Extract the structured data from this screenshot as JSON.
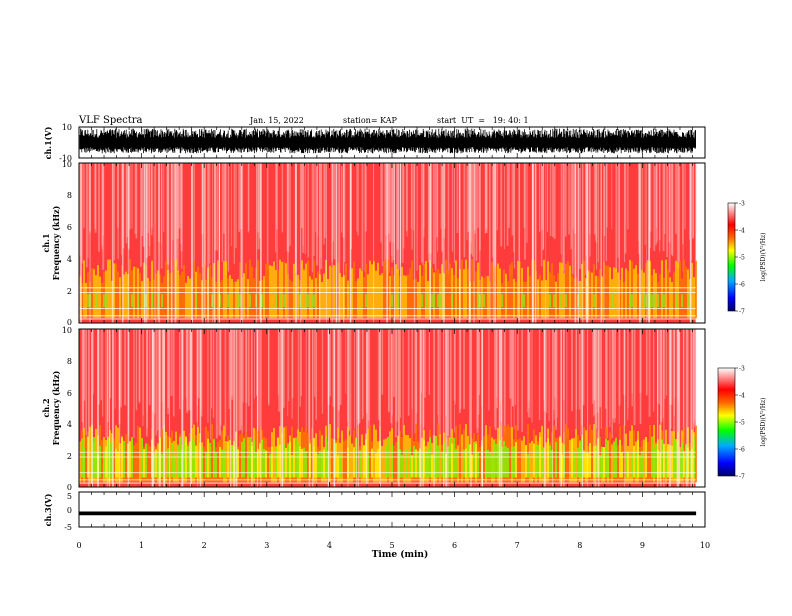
{
  "header": {
    "title": "VLF Spectra",
    "date": "Jan. 15, 2022",
    "station": "station= KAP",
    "start": "start  UT  =   19: 40: 1"
  },
  "chart_data": [
    {
      "type": "line",
      "name": "ch1-waveform",
      "ylabel": "ch.1(V)",
      "ylim": [
        -10,
        10
      ],
      "y_ticks": [
        "10",
        "-10"
      ],
      "xlim": [
        0,
        10
      ],
      "data_extent_x": [
        0,
        9.85
      ],
      "appearance": "dense black oscillating trace spanning roughly -7 to 9 V"
    },
    {
      "type": "heatmap",
      "name": "ch1-spectrogram",
      "ylabel": "ch.1\nFrequency (kHz)",
      "ylim": [
        0,
        10
      ],
      "y_ticks": [
        "0",
        "2",
        "4",
        "6",
        "8",
        "10"
      ],
      "xlim": [
        0,
        10
      ],
      "data_extent_x": [
        0,
        9.85
      ],
      "colorbar": {
        "label": "log(PSD)(V²/Hz)",
        "range": [
          -7,
          -3
        ],
        "ticks": [
          "-3",
          "-4",
          "-5",
          "-6",
          "-7"
        ],
        "colors": [
          "#000066",
          "#0000ff",
          "#00aaff",
          "#00ff00",
          "#ffff00",
          "#ff6600",
          "#ff0000",
          "#ffffff"
        ]
      }
    },
    {
      "type": "heatmap",
      "name": "ch2-spectrogram",
      "ylabel": "ch.2\nFrequency (kHz)",
      "ylim": [
        0,
        10
      ],
      "y_ticks": [
        "0",
        "2",
        "4",
        "6",
        "8",
        "10"
      ],
      "xlim": [
        0,
        10
      ],
      "data_extent_x": [
        0,
        9.85
      ],
      "colorbar": {
        "label": "log(PSD)(V²/Hz)",
        "range": [
          -7,
          -3
        ],
        "ticks": [
          "-3",
          "-4",
          "-5",
          "-6",
          "-7"
        ],
        "colors": [
          "#000066",
          "#0000ff",
          "#00aaff",
          "#00ff00",
          "#ffff00",
          "#ff6600",
          "#ff0000",
          "#ffffff"
        ]
      }
    },
    {
      "type": "line",
      "name": "ch3-waveform",
      "ylabel": "ch.3(V)",
      "ylim": [
        -5,
        5
      ],
      "y_ticks": [
        "5",
        "0",
        "-5"
      ],
      "xlim": [
        0,
        10
      ],
      "data_extent_x": [
        0,
        9.85
      ],
      "appearance": "thick near-constant black band at about -1 V"
    }
  ],
  "xaxis": {
    "label": "Time (min)",
    "ticks": [
      "0",
      "1",
      "2",
      "3",
      "4",
      "5",
      "6",
      "7",
      "8",
      "9",
      "10"
    ]
  }
}
